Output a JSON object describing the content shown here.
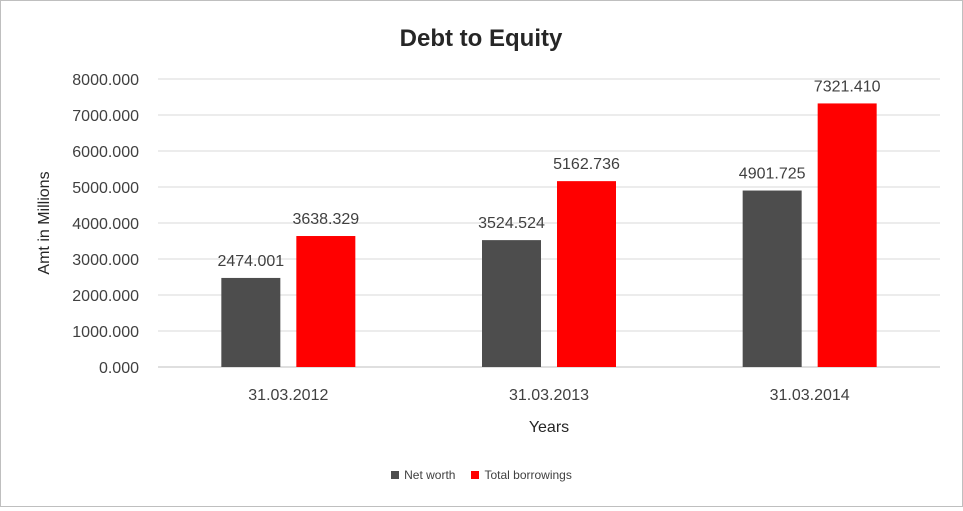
{
  "chart_data": {
    "type": "bar",
    "title": "Debt to Equity",
    "xlabel": "Years",
    "ylabel": "Amt in Millions",
    "categories": [
      "31.03.2012",
      "31.03.2013",
      "31.03.2014"
    ],
    "series": [
      {
        "name": "Net worth",
        "color": "#4d4d4d",
        "values": [
          2474.001,
          3524.524,
          4901.725
        ],
        "labels": [
          "2474.001",
          "3524.524",
          "4901.725"
        ]
      },
      {
        "name": "Total borrowings",
        "color": "#ff0000",
        "values": [
          3638.329,
          5162.736,
          7321.41
        ],
        "labels": [
          "3638.329",
          "5162.736",
          "7321.410"
        ]
      }
    ],
    "yticks": [
      "0.000",
      "1000.000",
      "2000.000",
      "3000.000",
      "4000.000",
      "5000.000",
      "6000.000",
      "7000.000",
      "8000.000"
    ],
    "ylim": [
      0,
      8000
    ],
    "grid": true,
    "legend_position": "bottom"
  }
}
